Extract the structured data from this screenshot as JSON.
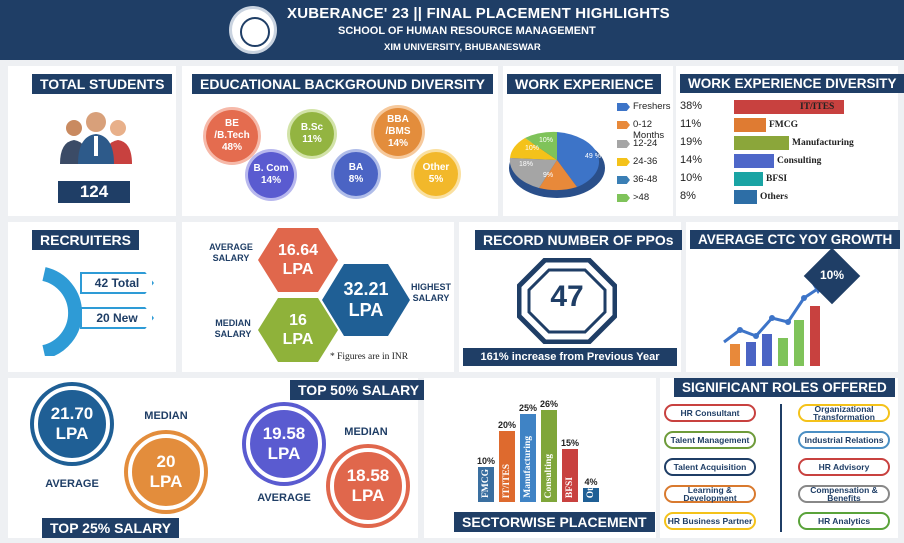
{
  "header": {
    "title": "XUBERANCE' 23 || FINAL PLACEMENT HIGHLIGHTS",
    "school": "SCHOOL OF HUMAN RESOURCE MANAGEMENT",
    "university": "XIM UNIVERSITY, BHUBANESWAR",
    "logo_text": "XIM UNIVERSITY"
  },
  "total_students": {
    "label": "TOTAL STUDENTS",
    "value": "124"
  },
  "edu": {
    "label": "EDUCATIONAL BACKGROUND DIVERSITY",
    "items": [
      {
        "name": "BE /B.Tech",
        "pct": "48%",
        "color": "#e46c4f"
      },
      {
        "name": "B.Sc",
        "pct": "11%",
        "color": "#93b441"
      },
      {
        "name": "BBA /BMS",
        "pct": "14%",
        "color": "#e38d3c"
      },
      {
        "name": "B. Com",
        "pct": "14%",
        "color": "#5a5bd0"
      },
      {
        "name": "BA",
        "pct": "8%",
        "color": "#4b64c4"
      },
      {
        "name": "Other",
        "pct": "5%",
        "color": "#f2b82b"
      }
    ]
  },
  "work_exp": {
    "label": "WORK EXPERIENCE",
    "legend": [
      "Freshers",
      "0-12 Months",
      "12-24",
      "24-36",
      "36-48",
      ">48"
    ],
    "pie_labels": [
      "49 %",
      "9%",
      "18%",
      "10%",
      "10%"
    ],
    "colors": [
      "#3d74c8",
      "#e8893a",
      "#a5a5a5",
      "#f4c21a",
      "#3a7fb5",
      "#7fc35a"
    ]
  },
  "wexp_div": {
    "label": "WORK EXPERIENCE DIVERSITY",
    "items": [
      {
        "pct": "38%",
        "name": "IT/ITES",
        "value": 38,
        "color": "#c8413f"
      },
      {
        "pct": "11%",
        "name": "FMCG",
        "value": 11,
        "color": "#df7b32"
      },
      {
        "pct": "19%",
        "name": "Manufacturing",
        "value": 19,
        "color": "#8ba63a"
      },
      {
        "pct": "14%",
        "name": "Consulting",
        "value": 14,
        "color": "#4e67c9"
      },
      {
        "pct": "10%",
        "name": "BFSI",
        "value": 10,
        "color": "#1aa4a4"
      },
      {
        "pct": "8%",
        "name": "Others",
        "value": 8,
        "color": "#2d6ea6"
      }
    ]
  },
  "recruiters": {
    "label": "RECRUITERS",
    "total": "42 Total",
    "new": "20 New"
  },
  "salary": {
    "avg_label": "AVERAGE SALARY",
    "avg": "16.64",
    "avg_unit": "LPA",
    "high_label": "HIGHEST SALARY",
    "high": "32.21",
    "high_unit": "LPA",
    "med_label": "MEDIAN SALARY",
    "med": "16",
    "med_unit": "LPA",
    "note": "* Figures are in INR"
  },
  "ppo": {
    "label": "RECORD NUMBER OF PPOs",
    "value": "47",
    "note": "161% increase from Previous Year"
  },
  "ctc": {
    "label": "AVERAGE CTC YOY GROWTH",
    "growth": "10%"
  },
  "top25": {
    "label": "TOP 25% SALARY",
    "avg_val": "21.70",
    "avg_unit": "LPA",
    "avg_label": "AVERAGE",
    "med_label": "MEDIAN",
    "med_val": "20",
    "med_unit": "LPA"
  },
  "top50": {
    "label": "TOP 50% SALARY",
    "avg_val": "19.58",
    "avg_unit": "LPA",
    "avg_label": "AVERAGE",
    "med_label": "MEDIAN",
    "med_val": "18.58",
    "med_unit": "LPA"
  },
  "sector": {
    "label": "SECTORWISE PLACEMENT",
    "items": [
      {
        "name": "FMCG",
        "pct": "10%",
        "value": 10,
        "color": "#3a6fa0"
      },
      {
        "name": "IT/ITES",
        "pct": "20%",
        "value": 20,
        "color": "#de6a2e"
      },
      {
        "name": "Manufacturing",
        "pct": "25%",
        "value": 25,
        "color": "#3f83c5"
      },
      {
        "name": "Consulting",
        "pct": "26%",
        "value": 26,
        "color": "#7fa63a"
      },
      {
        "name": "BFSI",
        "pct": "15%",
        "value": 15,
        "color": "#c8413f"
      },
      {
        "name": "Other",
        "pct": "4%",
        "value": 4,
        "color": "#1f5f95"
      }
    ]
  },
  "roles": {
    "label": "SIGNIFICANT ROLES OFFERED",
    "left": [
      {
        "name": "HR Consultant",
        "color": "#c8413f"
      },
      {
        "name": "Talent Management",
        "color": "#6e9b3a"
      },
      {
        "name": "Talent Acquisition",
        "color": "#1f3e66"
      },
      {
        "name": "Learning & Development",
        "color": "#d97a2e"
      },
      {
        "name": "HR Business Partner",
        "color": "#f4c21a"
      }
    ],
    "right": [
      {
        "name": "Organizational Transformation",
        "color": "#f4c21a"
      },
      {
        "name": "Industrial Relations",
        "color": "#4b8fc4"
      },
      {
        "name": "HR Advisory",
        "color": "#c8413f"
      },
      {
        "name": "Compensation & Benefits",
        "color": "#888888"
      },
      {
        "name": "HR Analytics",
        "color": "#5aa33a"
      }
    ]
  }
}
